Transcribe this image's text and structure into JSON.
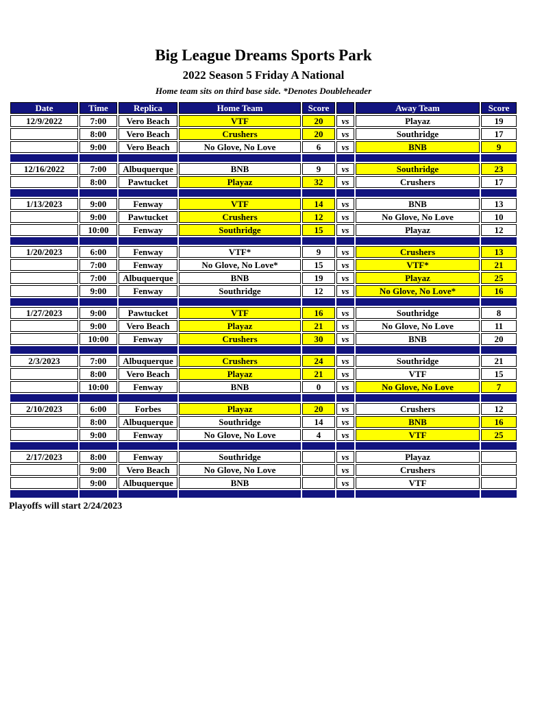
{
  "page": {
    "title": "Big League Dreams Sports Park",
    "subtitle": "2022 Season 5 Friday A National",
    "note": "Home team sits on third base side.  *Denotes Doubleheader",
    "footer": "Playoffs will start 2/24/2023"
  },
  "colors": {
    "navy": "#12147f",
    "yellow": "#ffff00",
    "header_text": "#ffffff",
    "cell_border": "#000000"
  },
  "table": {
    "headers": [
      "Date",
      "Time",
      "Replica",
      "Home Team",
      "Score",
      "",
      "Away Team",
      "Score"
    ],
    "vs_label": "vs",
    "sections": [
      {
        "date": "12/9/2022",
        "games": [
          {
            "time": "7:00",
            "replica": "Vero Beach",
            "home": "VTF",
            "home_score": "20",
            "away": "Playaz",
            "away_score": "19",
            "winner": "home"
          },
          {
            "time": "8:00",
            "replica": "Vero Beach",
            "home": "Crushers",
            "home_score": "20",
            "away": "Southridge",
            "away_score": "17",
            "winner": "home"
          },
          {
            "time": "9:00",
            "replica": "Vero Beach",
            "home": "No Glove, No Love",
            "home_score": "6",
            "away": "BNB",
            "away_score": "9",
            "winner": "away"
          }
        ]
      },
      {
        "date": "12/16/2022",
        "games": [
          {
            "time": "7:00",
            "replica": "Albuquerque",
            "home": "BNB",
            "home_score": "9",
            "away": "Southridge",
            "away_score": "23",
            "winner": "away"
          },
          {
            "time": "8:00",
            "replica": "Pawtucket",
            "home": "Playaz",
            "home_score": "32",
            "away": "Crushers",
            "away_score": "17",
            "winner": "home"
          }
        ]
      },
      {
        "date": "1/13/2023",
        "games": [
          {
            "time": "9:00",
            "replica": "Fenway",
            "home": "VTF",
            "home_score": "14",
            "away": "BNB",
            "away_score": "13",
            "winner": "home"
          },
          {
            "time": "9:00",
            "replica": "Pawtucket",
            "home": "Crushers",
            "home_score": "12",
            "away": "No Glove, No Love",
            "away_score": "10",
            "winner": "home"
          },
          {
            "time": "10:00",
            "replica": "Fenway",
            "home": "Southridge",
            "home_score": "15",
            "away": "Playaz",
            "away_score": "12",
            "winner": "home"
          }
        ]
      },
      {
        "date": "1/20/2023",
        "games": [
          {
            "time": "6:00",
            "replica": "Fenway",
            "home": "VTF*",
            "home_score": "9",
            "away": "Crushers",
            "away_score": "13",
            "winner": "away"
          },
          {
            "time": "7:00",
            "replica": "Fenway",
            "home": "No Glove, No Love*",
            "home_score": "15",
            "away": "VTF*",
            "away_score": "21",
            "winner": "away"
          },
          {
            "time": "7:00",
            "replica": "Albuquerque",
            "home": "BNB",
            "home_score": "19",
            "away": "Playaz",
            "away_score": "25",
            "winner": "away"
          },
          {
            "time": "9:00",
            "replica": "Fenway",
            "home": "Southridge",
            "home_score": "12",
            "away": "No Glove, No Love*",
            "away_score": "16",
            "winner": "away"
          }
        ]
      },
      {
        "date": "1/27/2023",
        "games": [
          {
            "time": "9:00",
            "replica": "Pawtucket",
            "home": "VTF",
            "home_score": "16",
            "away": "Southridge",
            "away_score": "8",
            "winner": "home"
          },
          {
            "time": "9:00",
            "replica": "Vero Beach",
            "home": "Playaz",
            "home_score": "21",
            "away": "No Glove, No Love",
            "away_score": "11",
            "winner": "home"
          },
          {
            "time": "10:00",
            "replica": "Fenway",
            "home": "Crushers",
            "home_score": "30",
            "away": "BNB",
            "away_score": "20",
            "winner": "home"
          }
        ]
      },
      {
        "date": "2/3/2023",
        "games": [
          {
            "time": "7:00",
            "replica": "Albuquerque",
            "home": "Crushers",
            "home_score": "24",
            "away": "Southridge",
            "away_score": "21",
            "winner": "home"
          },
          {
            "time": "8:00",
            "replica": "Vero Beach",
            "home": "Playaz",
            "home_score": "21",
            "away": "VTF",
            "away_score": "15",
            "winner": "home"
          },
          {
            "time": "10:00",
            "replica": "Fenway",
            "home": "BNB",
            "home_score": "0",
            "away": "No Glove, No Love",
            "away_score": "7",
            "winner": "away"
          }
        ]
      },
      {
        "date": "2/10/2023",
        "games": [
          {
            "time": "6:00",
            "replica": "Forbes",
            "home": "Playaz",
            "home_score": "20",
            "away": "Crushers",
            "away_score": "12",
            "winner": "home"
          },
          {
            "time": "8:00",
            "replica": "Albuquerque",
            "home": "Southridge",
            "home_score": "14",
            "away": "BNB",
            "away_score": "16",
            "winner": "away"
          },
          {
            "time": "9:00",
            "replica": "Fenway",
            "home": "No Glove, No Love",
            "home_score": "4",
            "away": "VTF",
            "away_score": "25",
            "winner": "away"
          }
        ]
      },
      {
        "date": "2/17/2023",
        "games": [
          {
            "time": "8:00",
            "replica": "Fenway",
            "home": "Southridge",
            "home_score": "",
            "away": "Playaz",
            "away_score": "",
            "winner": ""
          },
          {
            "time": "9:00",
            "replica": "Vero Beach",
            "home": "No Glove, No Love",
            "home_score": "",
            "away": "Crushers",
            "away_score": "",
            "winner": ""
          },
          {
            "time": "9:00",
            "replica": "Albuquerque",
            "home": "BNB",
            "home_score": "",
            "away": "VTF",
            "away_score": "",
            "winner": ""
          }
        ]
      }
    ]
  }
}
